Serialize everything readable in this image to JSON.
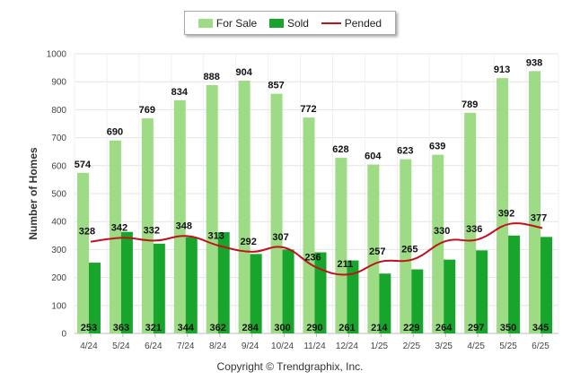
{
  "footer": "Copyright © Trendgraphix, Inc.",
  "legend": {
    "for_sale": "For Sale",
    "sold": "Sold",
    "pended": "Pended"
  },
  "colors": {
    "for_sale": "#9ddc84",
    "sold": "#17a52b",
    "pended": "#c1121c",
    "grid": "#e4e4e4"
  },
  "chart_data": {
    "type": "bar",
    "ylabel": "Number of Homes",
    "xlabel": "",
    "ylim": [
      0,
      1000
    ],
    "yticks": [
      0,
      100,
      200,
      300,
      400,
      500,
      600,
      700,
      800,
      900,
      1000
    ],
    "grid": true,
    "legend_position": "top-center",
    "categories": [
      "4/24",
      "5/24",
      "6/24",
      "7/24",
      "8/24",
      "9/24",
      "10/24",
      "11/24",
      "12/24",
      "1/25",
      "2/25",
      "3/25",
      "4/25",
      "5/25",
      "6/25"
    ],
    "series": [
      {
        "name": "For Sale",
        "type": "bar",
        "values": [
          574,
          690,
          769,
          834,
          888,
          904,
          857,
          772,
          628,
          604,
          623,
          639,
          789,
          913,
          938
        ]
      },
      {
        "name": "Sold",
        "type": "bar",
        "values": [
          253,
          363,
          321,
          344,
          362,
          284,
          300,
          290,
          261,
          214,
          229,
          264,
          297,
          350,
          345
        ]
      },
      {
        "name": "Pended",
        "type": "line",
        "values": [
          328,
          342,
          332,
          348,
          313,
          292,
          307,
          236,
          211,
          257,
          265,
          330,
          336,
          392,
          377
        ]
      }
    ]
  }
}
